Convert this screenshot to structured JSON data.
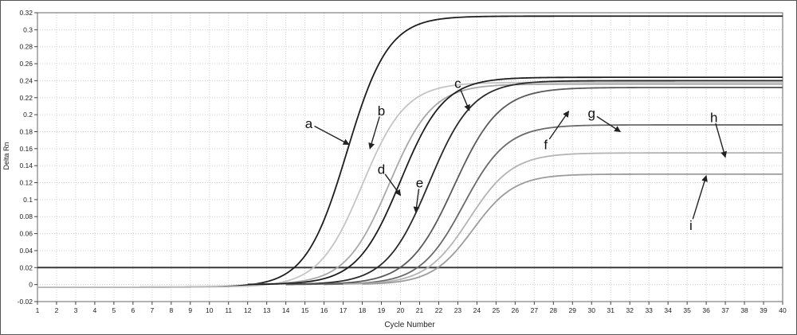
{
  "chart_data": {
    "type": "line",
    "title": "",
    "xlabel": "Cycle Number",
    "ylabel": "Delta Rn",
    "xlim": [
      1,
      40
    ],
    "ylim": [
      -0.02,
      0.32
    ],
    "x_ticks": [
      1,
      2,
      3,
      4,
      5,
      6,
      7,
      8,
      9,
      10,
      11,
      12,
      13,
      14,
      15,
      16,
      17,
      18,
      19,
      20,
      21,
      22,
      23,
      24,
      25,
      26,
      27,
      28,
      29,
      30,
      31,
      32,
      33,
      34,
      35,
      36,
      37,
      38,
      39,
      40
    ],
    "y_ticks": [
      -0.02,
      0,
      0.02,
      0.04,
      0.06,
      0.08,
      0.1,
      0.12,
      0.14,
      0.16,
      0.18,
      0.2,
      0.22,
      0.24,
      0.26,
      0.28,
      0.3,
      0.32
    ],
    "y_tick_labels": [
      "-0.02",
      "0",
      "0.02",
      "0.04",
      "0.06",
      "0.08",
      "0.1",
      "0.12",
      "0.14",
      "0.16",
      "0.18",
      "0.2",
      "0.22",
      "0.24",
      "0.26",
      "0.28",
      "0.3",
      "0.32"
    ],
    "grid": true,
    "threshold": {
      "y": 0.02,
      "color": "#3a3a3a"
    },
    "series": [
      {
        "name": "a",
        "color": "#1e1e1e",
        "start": 1,
        "baseline": -0.003,
        "plateau": 0.316,
        "midpoint": 17.2,
        "slope": 0.42
      },
      {
        "name": "b",
        "color": "#c4c4c4",
        "start": 1,
        "baseline": -0.003,
        "plateau": 0.238,
        "midpoint": 18.0,
        "slope": 0.4
      },
      {
        "name": "c",
        "color": "#a8a8a8",
        "start": 12,
        "baseline": 0.0,
        "plateau": 0.236,
        "midpoint": 19.4,
        "slope": 0.4
      },
      {
        "name": "d",
        "color": "#1e1e1e",
        "start": 12,
        "baseline": 0.0,
        "plateau": 0.244,
        "midpoint": 20.0,
        "slope": 0.4
      },
      {
        "name": "e",
        "color": "#2a2a2a",
        "start": 14,
        "baseline": 0.0,
        "plateau": 0.24,
        "midpoint": 21.5,
        "slope": 0.4
      },
      {
        "name": "f",
        "color": "#5a5a5a",
        "start": 14,
        "baseline": 0.0,
        "plateau": 0.232,
        "midpoint": 22.8,
        "slope": 0.38
      },
      {
        "name": "g",
        "color": "#6a6a6a",
        "start": 16,
        "baseline": 0.0,
        "plateau": 0.188,
        "midpoint": 23.3,
        "slope": 0.4
      },
      {
        "name": "h",
        "color": "#b4b4b4",
        "start": 17,
        "baseline": 0.0,
        "plateau": 0.155,
        "midpoint": 23.6,
        "slope": 0.4
      },
      {
        "name": "i",
        "color": "#9c9c9c",
        "start": 18,
        "baseline": 0.0,
        "plateau": 0.13,
        "midpoint": 23.8,
        "slope": 0.42
      }
    ],
    "annotations": [
      {
        "text": "a",
        "at": [
          15.2,
          0.19
        ],
        "arrow_to": [
          17.3,
          0.165
        ]
      },
      {
        "text": "b",
        "at": [
          19.0,
          0.205
        ],
        "arrow_to": [
          18.4,
          0.16
        ]
      },
      {
        "text": "c",
        "at": [
          23.0,
          0.237
        ],
        "arrow_to": [
          23.6,
          0.205
        ]
      },
      {
        "text": "d",
        "at": [
          19.0,
          0.136
        ],
        "arrow_to": [
          20.0,
          0.105
        ]
      },
      {
        "text": "e",
        "at": [
          21.0,
          0.12
        ],
        "arrow_to": [
          20.8,
          0.085
        ]
      },
      {
        "text": "f",
        "at": [
          27.6,
          0.165
        ],
        "arrow_to": [
          28.8,
          0.204
        ]
      },
      {
        "text": "g",
        "at": [
          30.0,
          0.202
        ],
        "arrow_to": [
          31.5,
          0.18
        ]
      },
      {
        "text": "h",
        "at": [
          36.4,
          0.197
        ],
        "arrow_to": [
          37.0,
          0.15
        ]
      },
      {
        "text": "i",
        "at": [
          35.2,
          0.07
        ],
        "arrow_to": [
          36.0,
          0.128
        ]
      }
    ]
  }
}
